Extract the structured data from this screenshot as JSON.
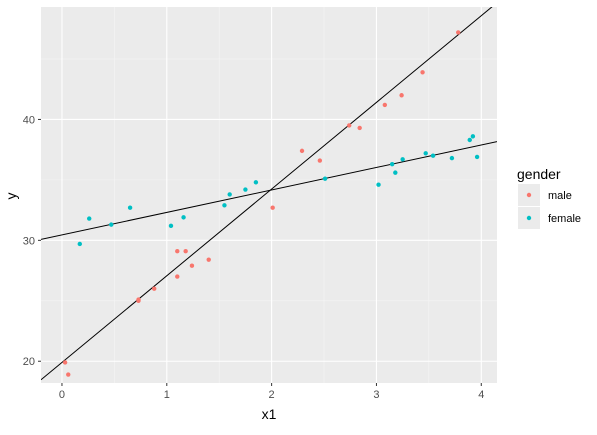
{
  "chart_data": {
    "type": "scatter",
    "xlabel": "x1",
    "ylabel": "y",
    "xlim": [
      -0.2,
      4.15
    ],
    "ylim": [
      18.2,
      49.3
    ],
    "x_ticks": [
      0,
      1,
      2,
      3,
      4
    ],
    "y_ticks": [
      20,
      30,
      40
    ],
    "grid": true,
    "legend": {
      "title": "gender",
      "position": "right",
      "entries": [
        {
          "label": "male",
          "color": "#F8766D"
        },
        {
          "label": "female",
          "color": "#00BFC4"
        }
      ]
    },
    "series": [
      {
        "name": "male",
        "color": "#F8766D",
        "points": [
          [
            0.03,
            19.9
          ],
          [
            0.06,
            18.9
          ],
          [
            0.73,
            25.0
          ],
          [
            0.73,
            25.1
          ],
          [
            0.88,
            26.0
          ],
          [
            1.1,
            29.1
          ],
          [
            1.1,
            27.0
          ],
          [
            1.18,
            29.1
          ],
          [
            1.24,
            27.9
          ],
          [
            1.4,
            28.4
          ],
          [
            2.01,
            32.7
          ],
          [
            2.29,
            37.4
          ],
          [
            2.46,
            36.6
          ],
          [
            2.74,
            39.5
          ],
          [
            2.84,
            39.3
          ],
          [
            3.08,
            41.2
          ],
          [
            3.24,
            42.0
          ],
          [
            3.44,
            43.9
          ],
          [
            3.78,
            47.2
          ]
        ]
      },
      {
        "name": "female",
        "color": "#00BFC4",
        "points": [
          [
            0.17,
            29.7
          ],
          [
            0.26,
            31.8
          ],
          [
            0.47,
            31.3
          ],
          [
            0.65,
            32.7
          ],
          [
            1.04,
            31.2
          ],
          [
            1.16,
            31.9
          ],
          [
            1.55,
            32.9
          ],
          [
            1.6,
            33.8
          ],
          [
            1.75,
            34.2
          ],
          [
            1.85,
            34.8
          ],
          [
            2.51,
            35.1
          ],
          [
            3.02,
            34.6
          ],
          [
            3.15,
            36.3
          ],
          [
            3.18,
            35.6
          ],
          [
            3.25,
            36.7
          ],
          [
            3.47,
            37.2
          ],
          [
            3.54,
            37.0
          ],
          [
            3.72,
            36.8
          ],
          [
            3.89,
            38.3
          ],
          [
            3.92,
            38.6
          ],
          [
            3.96,
            36.9
          ]
        ]
      }
    ],
    "lines": [
      {
        "name": "male fit",
        "intercept": 19.9,
        "slope": 7.17,
        "color": "#000000"
      },
      {
        "name": "female fit",
        "intercept": 30.45,
        "slope": 1.86,
        "color": "#000000"
      }
    ]
  }
}
